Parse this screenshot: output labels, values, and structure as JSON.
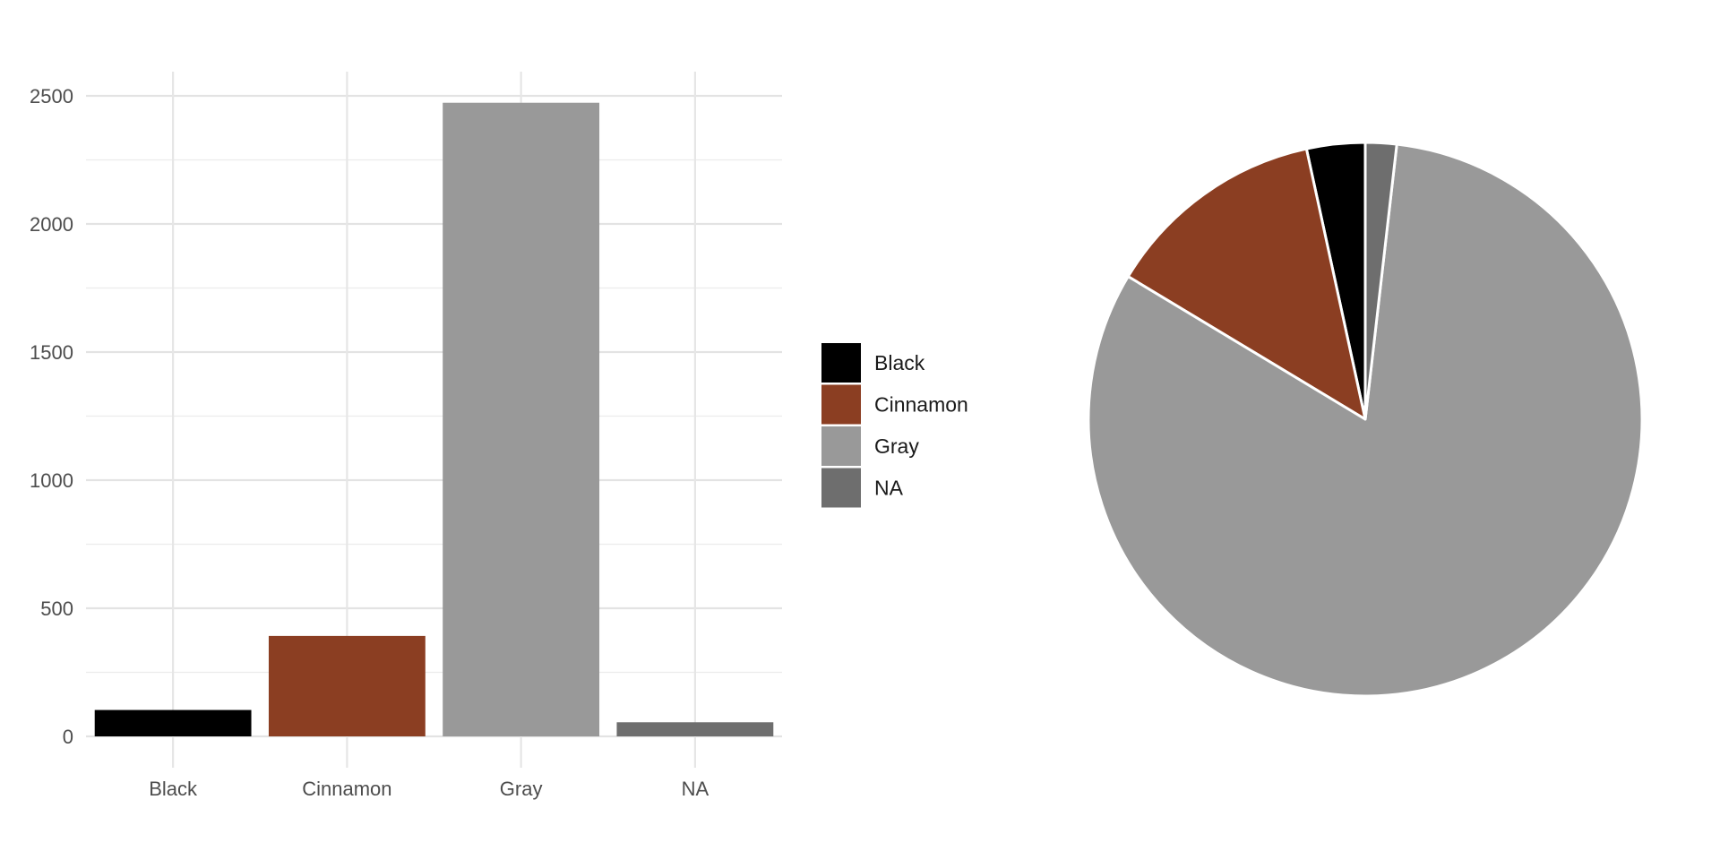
{
  "chart_data": [
    {
      "type": "bar",
      "categories": [
        "Black",
        "Cinnamon",
        "Gray",
        "NA"
      ],
      "values": [
        103,
        392,
        2473,
        55
      ],
      "title": "",
      "xlabel": "",
      "ylabel": "",
      "ylim": [
        0,
        2600
      ],
      "yticks": [
        0,
        500,
        1000,
        1500,
        2000,
        2500
      ],
      "grid": true,
      "colors": [
        "#000000",
        "#8B3E22",
        "#999999",
        "#6E6E6E"
      ]
    },
    {
      "type": "pie",
      "categories": [
        "Black",
        "Cinnamon",
        "Gray",
        "NA"
      ],
      "values": [
        103,
        392,
        2473,
        55
      ],
      "direction": "counter-clockwise",
      "start": "top",
      "colors": [
        "#000000",
        "#8B3E22",
        "#999999",
        "#6E6E6E"
      ]
    }
  ],
  "legend": {
    "placement": "between charts, center-left",
    "items": [
      {
        "label": "Black",
        "color": "#000000"
      },
      {
        "label": "Cinnamon",
        "color": "#8B3E22"
      },
      {
        "label": "Gray",
        "color": "#999999"
      },
      {
        "label": "NA",
        "color": "#6E6E6E"
      }
    ]
  }
}
